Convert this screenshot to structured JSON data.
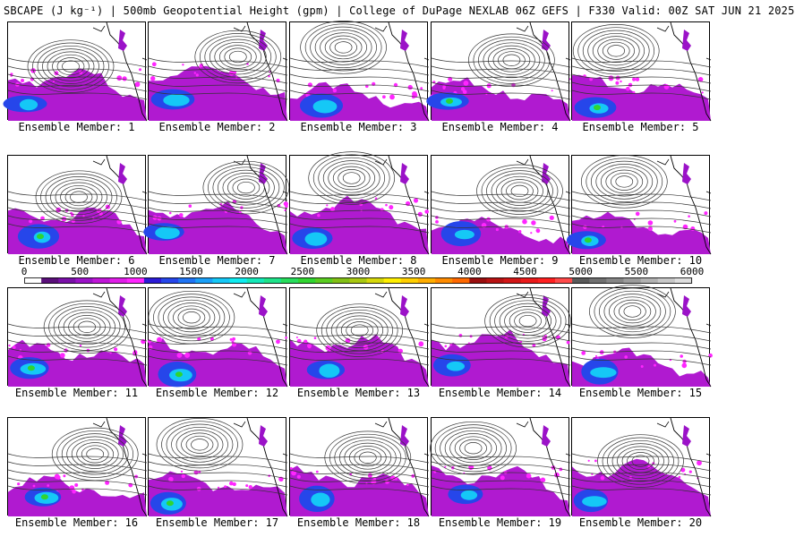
{
  "title": "SBCAPE (J kg⁻¹) | 500mb Geopotential Height (gpm) | College of DuPage NEXLAB 06Z GEFS | F330 Valid: 00Z SAT JUN 21 2025",
  "colorbar": {
    "ticks": [
      "0",
      "500",
      "1000",
      "1500",
      "2000",
      "2500",
      "3000",
      "3500",
      "4000",
      "4500",
      "5000",
      "5500",
      "6000"
    ],
    "colors": [
      "#ffffff",
      "#5a0f7a",
      "#7a10a8",
      "#9b12c8",
      "#c016d8",
      "#e01ee8",
      "#ff26ff",
      "#2b1bd6",
      "#2646ea",
      "#1f74f4",
      "#1aa0f8",
      "#15c8f6",
      "#10ecf0",
      "#14e8b8",
      "#1ee38a",
      "#27dd5c",
      "#30d530",
      "#5acd20",
      "#82c015",
      "#a8c810",
      "#d6d80a",
      "#ffef00",
      "#ffcf00",
      "#ffad00",
      "#ff8b00",
      "#ff6800",
      "#9a0e0e",
      "#b81212",
      "#d21616",
      "#ea1a1a",
      "#ff2020",
      "#ff4a4a",
      "#5a5a5a",
      "#707070",
      "#868686",
      "#9c9c9c",
      "#b2b2b2",
      "#c8c8c8",
      "#dedede"
    ]
  },
  "members": [
    {
      "label": "Ensemble Member: 1"
    },
    {
      "label": "Ensemble Member: 2"
    },
    {
      "label": "Ensemble Member: 3"
    },
    {
      "label": "Ensemble Member: 4"
    },
    {
      "label": "Ensemble Member: 5"
    },
    {
      "label": "Ensemble Member: 6"
    },
    {
      "label": "Ensemble Member: 7"
    },
    {
      "label": "Ensemble Member: 8"
    },
    {
      "label": "Ensemble Member: 9"
    },
    {
      "label": "Ensemble Member: 10"
    },
    {
      "label": "Ensemble Member: 11"
    },
    {
      "label": "Ensemble Member: 12"
    },
    {
      "label": "Ensemble Member: 13"
    },
    {
      "label": "Ensemble Member: 14"
    },
    {
      "label": "Ensemble Member: 15"
    },
    {
      "label": "Ensemble Member: 16"
    },
    {
      "label": "Ensemble Member: 17"
    },
    {
      "label": "Ensemble Member: 18"
    },
    {
      "label": "Ensemble Member: 19"
    },
    {
      "label": "Ensemble Member: 20"
    }
  ]
}
